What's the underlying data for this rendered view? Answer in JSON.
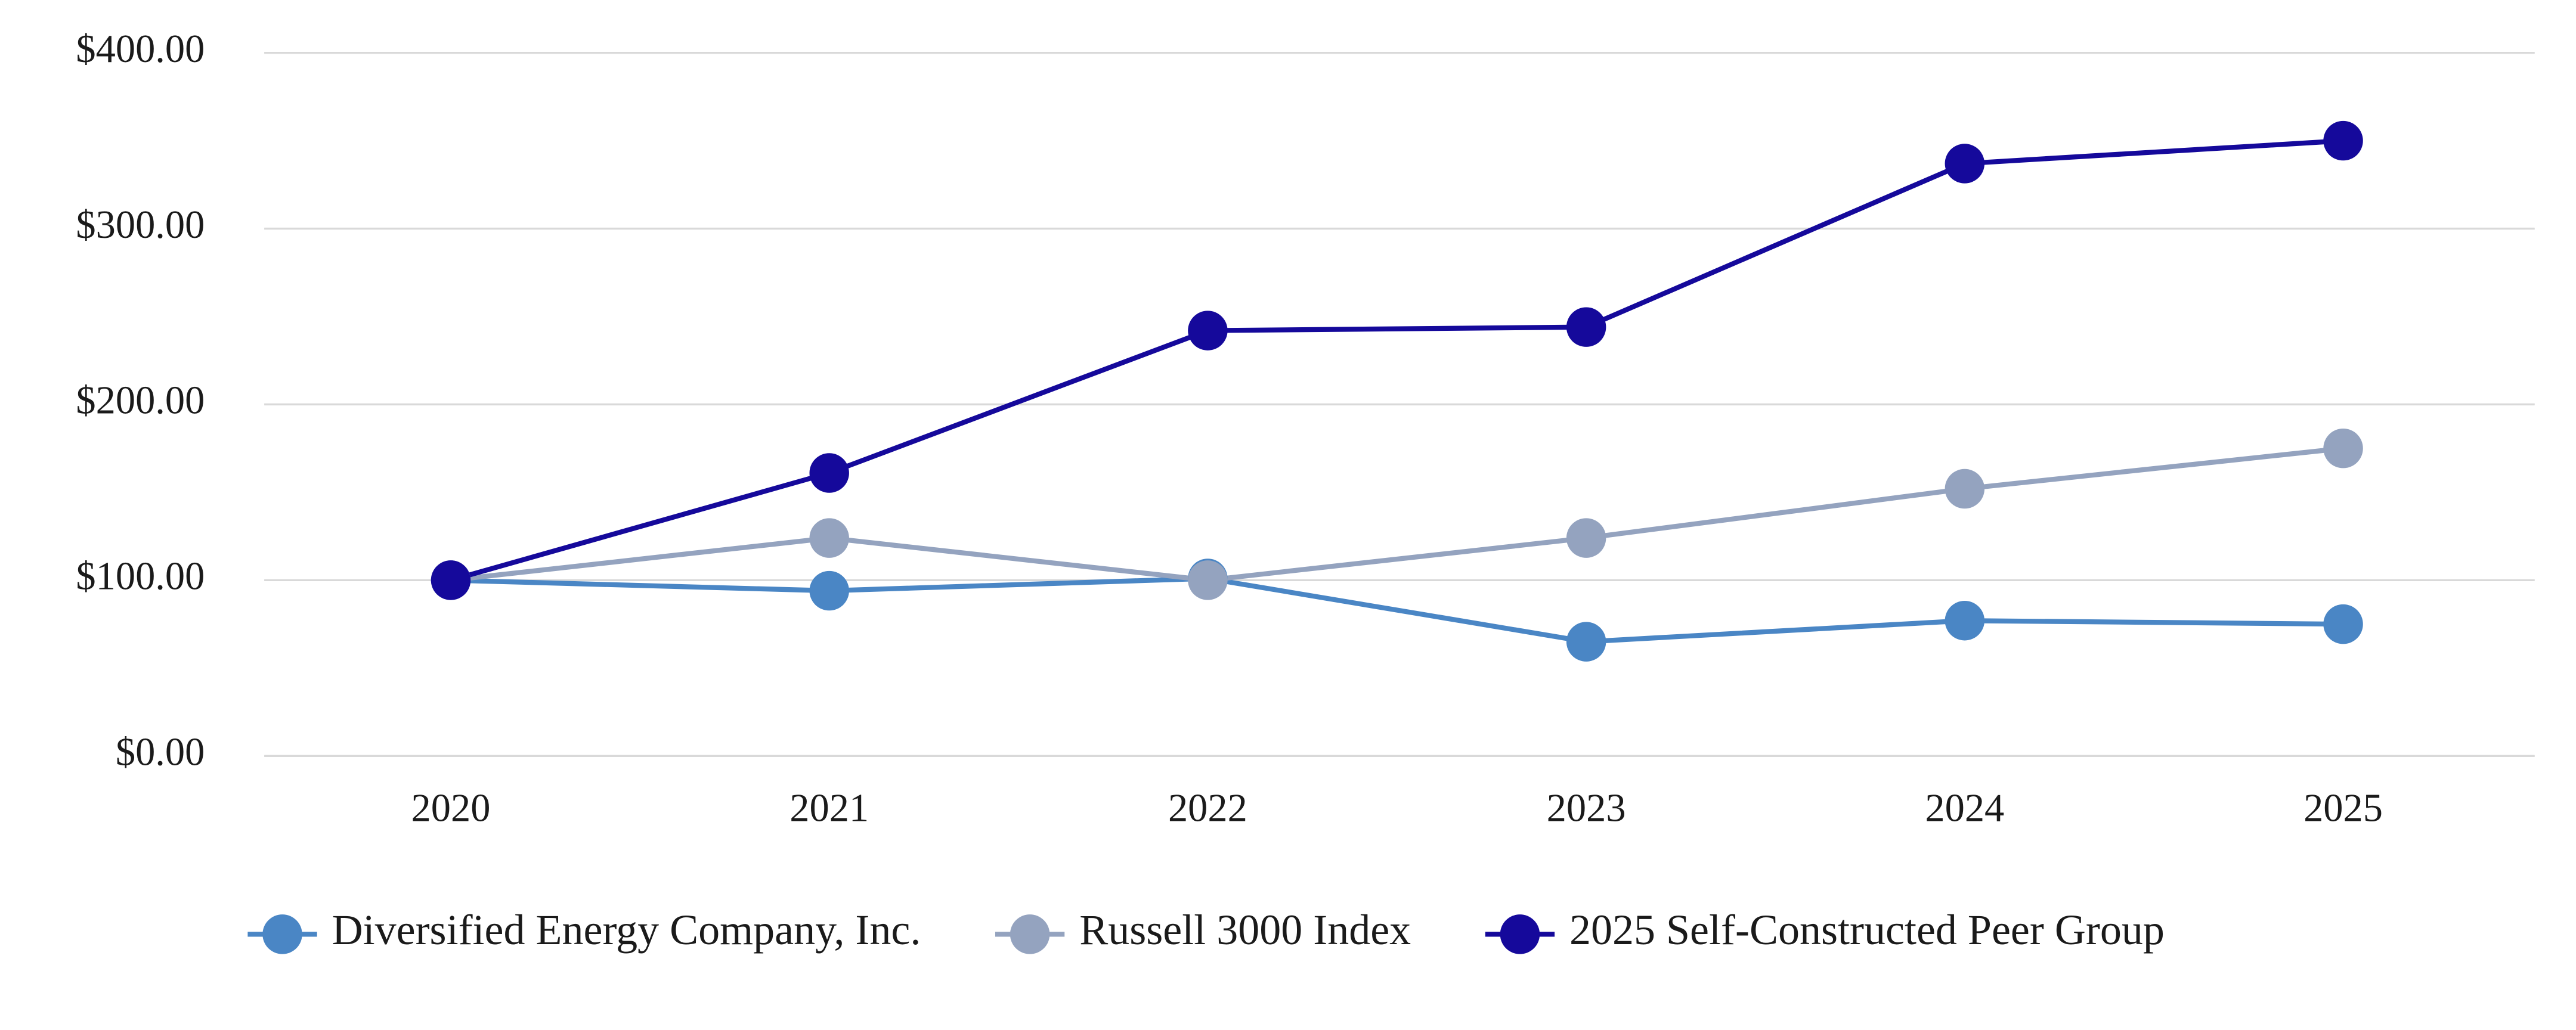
{
  "chart_data": {
    "type": "line",
    "categories": [
      "2020",
      "2021",
      "2022",
      "2023",
      "2024",
      "2025"
    ],
    "series": [
      {
        "name": "Diversified Energy Company, Inc.",
        "color": "#4a86c5",
        "values": [
          100,
          94,
          101,
          65,
          77,
          75
        ]
      },
      {
        "name": "Russell 3000 Index",
        "color": "#94a3bf",
        "values": [
          100,
          124,
          100,
          124,
          152,
          175
        ]
      },
      {
        "name": "2025 Self-Constructed Peer Group",
        "color": "#15099b",
        "values": [
          100,
          161,
          242,
          244,
          337,
          350
        ]
      }
    ],
    "ylim": [
      0,
      400
    ],
    "yticks": [
      {
        "value": 0,
        "label": "$0.00"
      },
      {
        "value": 100,
        "label": "$100.00"
      },
      {
        "value": 200,
        "label": "$200.00"
      },
      {
        "value": 300,
        "label": "$300.00"
      },
      {
        "value": 400,
        "label": "$400.00"
      }
    ],
    "grid": true,
    "legend": "bottom"
  }
}
